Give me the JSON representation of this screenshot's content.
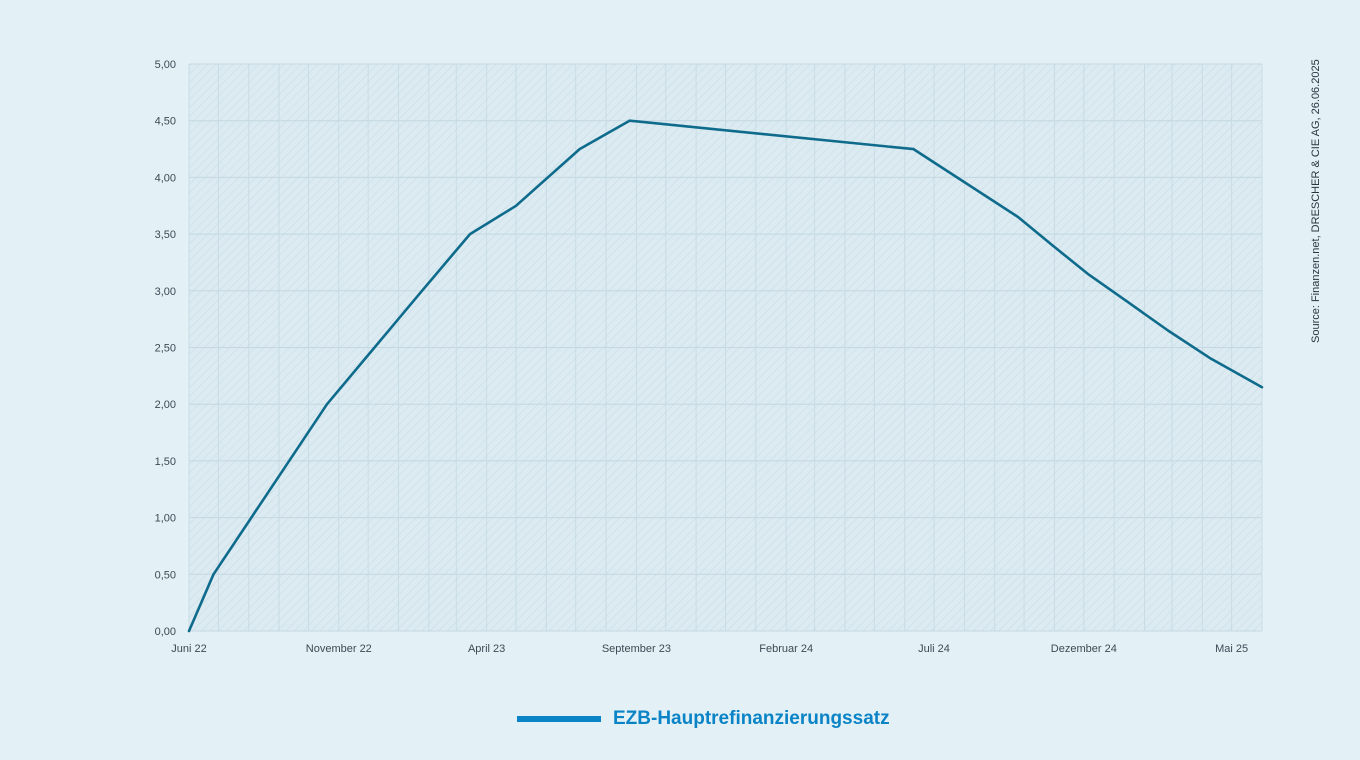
{
  "chart_data": {
    "type": "line",
    "title": "",
    "xlabel": "",
    "ylabel": "",
    "ylim": [
      0,
      5
    ],
    "y_ticks": [
      "0,00",
      "0,50",
      "1,00",
      "1,50",
      "2,00",
      "2,50",
      "3,00",
      "3,50",
      "4,00",
      "4,50",
      "5,00"
    ],
    "x_range": [
      "2022-06-01",
      "2025-06-01"
    ],
    "x_ticks": [
      {
        "label": "Juni 22",
        "date": "2022-06-01"
      },
      {
        "label": "November 22",
        "date": "2022-11-01"
      },
      {
        "label": "April 23",
        "date": "2023-04-01"
      },
      {
        "label": "September 23",
        "date": "2023-09-01"
      },
      {
        "label": "Februar 24",
        "date": "2024-02-01"
      },
      {
        "label": "Juli 24",
        "date": "2024-07-01"
      },
      {
        "label": "Dezember 24",
        "date": "2024-12-01"
      },
      {
        "label": "Mai 25",
        "date": "2025-05-01"
      }
    ],
    "grid": true,
    "legend_position": "bottom-center",
    "series": [
      {
        "name": "EZB-Hauptrefinanzierungssatz",
        "color": "#0f6b8c",
        "points": [
          {
            "x": "2022-06-01",
            "y": 0.0
          },
          {
            "x": "2022-06-26",
            "y": 0.5
          },
          {
            "x": "2022-10-20",
            "y": 2.0
          },
          {
            "x": "2023-01-25",
            "y": 3.0
          },
          {
            "x": "2023-03-15",
            "y": 3.5
          },
          {
            "x": "2023-05-01",
            "y": 3.75
          },
          {
            "x": "2023-07-05",
            "y": 4.25
          },
          {
            "x": "2023-08-25",
            "y": 4.5
          },
          {
            "x": "2024-06-10",
            "y": 4.25
          },
          {
            "x": "2024-09-25",
            "y": 3.65
          },
          {
            "x": "2024-10-30",
            "y": 3.4
          },
          {
            "x": "2024-12-05",
            "y": 3.15
          },
          {
            "x": "2025-01-15",
            "y": 2.9
          },
          {
            "x": "2025-02-25",
            "y": 2.65
          },
          {
            "x": "2025-04-10",
            "y": 2.4
          },
          {
            "x": "2025-06-01",
            "y": 2.15
          }
        ]
      }
    ]
  },
  "legend": {
    "label": "EZB-Hauptrefinanzierungssatz",
    "color": "#0a84c6"
  },
  "source_note": "Source: Finanzen.net, DRESCHER & CIE AG, 26.06.2025"
}
